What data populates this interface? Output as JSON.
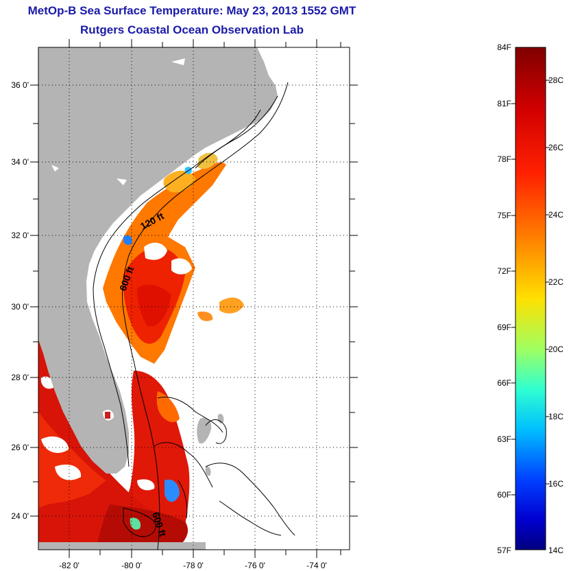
{
  "header": {
    "title": "MetOp-B Sea Surface Temperature:  May 23, 2013 1552 GMT",
    "subtitle": "Rutgers Coastal Ocean Observation Lab"
  },
  "map": {
    "lat_ticks": [
      "24 0'",
      "26 0'",
      "28 0'",
      "30 0'",
      "32 0'",
      "34 0'",
      "36 0'"
    ],
    "lon_ticks": [
      "-82 0'",
      "-80 0'",
      "-78 0'",
      "-76 0'",
      "-74 0'"
    ],
    "contour_labels": [
      "120 ft",
      "600 ft",
      "600 ft"
    ],
    "colors": {
      "land": "#b4b4b4",
      "cloud": "#ffffff",
      "border": "#000000"
    }
  },
  "colorbar": {
    "fahrenheit_labels": [
      "84F",
      "81F",
      "78F",
      "75F",
      "72F",
      "69F",
      "66F",
      "63F",
      "60F",
      "57F"
    ],
    "celsius_labels": [
      "28C",
      "26C",
      "24C",
      "22C",
      "20C",
      "18C",
      "16C",
      "14C"
    ],
    "range_f": [
      57,
      84
    ],
    "range_c": [
      14,
      28.9
    ],
    "palette": [
      "#7f0000",
      "#ff0000",
      "#ff7f00",
      "#ffff00",
      "#7fff7f",
      "#00ffff",
      "#007fff",
      "#0000ff",
      "#00007f"
    ]
  }
}
